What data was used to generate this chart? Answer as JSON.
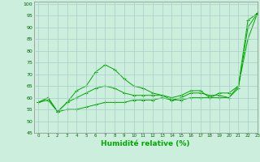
{
  "xlabel": "Humidité relative (%)",
  "bg_color": "#cceedd",
  "grid_color": "#aacccc",
  "line_color": "#00aa00",
  "xlim": [
    -0.5,
    23
  ],
  "ylim": [
    45,
    101
  ],
  "yticks": [
    45,
    50,
    55,
    60,
    65,
    70,
    75,
    80,
    85,
    90,
    95,
    100
  ],
  "xticks": [
    0,
    1,
    2,
    3,
    4,
    5,
    6,
    7,
    8,
    9,
    10,
    11,
    12,
    13,
    14,
    15,
    16,
    17,
    18,
    19,
    20,
    21,
    22,
    23
  ],
  "series": [
    {
      "x": [
        0,
        1,
        2,
        3,
        4,
        5,
        6,
        7,
        8,
        9,
        10,
        11,
        12,
        13,
        14,
        15,
        16,
        17,
        18,
        19,
        20,
        21,
        22,
        23
      ],
      "y": [
        58,
        60,
        54,
        58,
        63,
        65,
        71,
        74,
        72,
        68,
        65,
        64,
        62,
        61,
        60,
        61,
        63,
        63,
        60,
        62,
        62,
        65,
        93,
        96
      ]
    },
    {
      "x": [
        0,
        1,
        2,
        3,
        4,
        5,
        6,
        7,
        8,
        9,
        10,
        11,
        12,
        13,
        14,
        15,
        16,
        17,
        18,
        19,
        20,
        21,
        22,
        23
      ],
      "y": [
        58,
        60,
        54,
        58,
        60,
        62,
        64,
        65,
        64,
        62,
        61,
        61,
        61,
        61,
        59,
        60,
        62,
        62,
        61,
        61,
        60,
        65,
        85,
        96
      ]
    },
    {
      "x": [
        0,
        1,
        2,
        3,
        4,
        5,
        6,
        7,
        8,
        9,
        10,
        11,
        12,
        13,
        14,
        15,
        16,
        17,
        18,
        19,
        20,
        21,
        22,
        23
      ],
      "y": [
        58,
        59,
        54,
        55,
        55,
        56,
        57,
        58,
        58,
        58,
        59,
        59,
        59,
        60,
        59,
        59,
        60,
        60,
        60,
        60,
        60,
        64,
        90,
        96
      ]
    }
  ]
}
